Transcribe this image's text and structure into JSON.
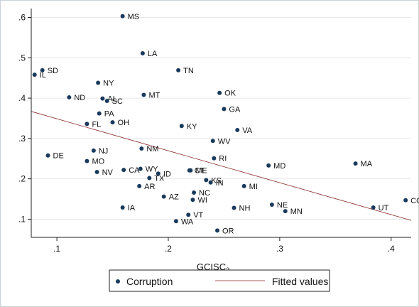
{
  "chart_data": {
    "type": "scatter",
    "xlabel": "GCISC",
    "xlabel_sub": "2",
    "xlim": [
      0.077,
      0.418
    ],
    "ylim": [
      0.055,
      0.622
    ],
    "xticks": [
      0.1,
      0.2,
      0.3,
      0.4
    ],
    "xtick_labels": [
      ".1",
      ".2",
      ".3",
      ".4"
    ],
    "yticks": [
      0.1,
      0.2,
      0.3,
      0.4,
      0.5,
      0.6
    ],
    "ytick_labels": [
      ".1",
      ".2",
      ".3",
      ".4",
      ".5",
      ".6"
    ],
    "grid": "horizontal",
    "legend_position": "bottom",
    "series": [
      {
        "name": "Corruption",
        "kind": "points",
        "color": "#1a3a5c",
        "points": [
          {
            "x": 0.159,
            "y": 0.603,
            "label": "MS"
          },
          {
            "x": 0.177,
            "y": 0.511,
            "label": "LA"
          },
          {
            "x": 0.087,
            "y": 0.469,
            "label": "SD"
          },
          {
            "x": 0.209,
            "y": 0.469,
            "label": "TN"
          },
          {
            "x": 0.08,
            "y": 0.458,
            "label": "IL"
          },
          {
            "x": 0.137,
            "y": 0.438,
            "label": "NY"
          },
          {
            "x": 0.246,
            "y": 0.413,
            "label": "OK"
          },
          {
            "x": 0.178,
            "y": 0.408,
            "label": "MT"
          },
          {
            "x": 0.111,
            "y": 0.402,
            "label": "ND"
          },
          {
            "x": 0.141,
            "y": 0.399,
            "label": "AL"
          },
          {
            "x": 0.145,
            "y": 0.393,
            "label": "SC"
          },
          {
            "x": 0.25,
            "y": 0.373,
            "label": "GA"
          },
          {
            "x": 0.138,
            "y": 0.362,
            "label": "PA"
          },
          {
            "x": 0.15,
            "y": 0.34,
            "label": "OH"
          },
          {
            "x": 0.127,
            "y": 0.336,
            "label": "FL"
          },
          {
            "x": 0.212,
            "y": 0.331,
            "label": "KY"
          },
          {
            "x": 0.262,
            "y": 0.321,
            "label": "VA"
          },
          {
            "x": 0.24,
            "y": 0.294,
            "label": "WV"
          },
          {
            "x": 0.176,
            "y": 0.275,
            "label": "NM"
          },
          {
            "x": 0.133,
            "y": 0.27,
            "label": "NJ"
          },
          {
            "x": 0.092,
            "y": 0.258,
            "label": "DE"
          },
          {
            "x": 0.241,
            "y": 0.251,
            "label": "RI"
          },
          {
            "x": 0.127,
            "y": 0.244,
            "label": "MO"
          },
          {
            "x": 0.368,
            "y": 0.238,
            "label": "MA"
          },
          {
            "x": 0.29,
            "y": 0.233,
            "label": "MD"
          },
          {
            "x": 0.175,
            "y": 0.225,
            "label": "WY"
          },
          {
            "x": 0.16,
            "y": 0.222,
            "label": "CA"
          },
          {
            "x": 0.219,
            "y": 0.221,
            "label": "CT"
          },
          {
            "x": 0.22,
            "y": 0.221,
            "label": "ME"
          },
          {
            "x": 0.136,
            "y": 0.217,
            "label": "NV"
          },
          {
            "x": 0.191,
            "y": 0.213,
            "label": "ID"
          },
          {
            "x": 0.183,
            "y": 0.202,
            "label": "TX"
          },
          {
            "x": 0.234,
            "y": 0.197,
            "label": "KS"
          },
          {
            "x": 0.238,
            "y": 0.191,
            "label": "IN"
          },
          {
            "x": 0.174,
            "y": 0.182,
            "label": "AR"
          },
          {
            "x": 0.268,
            "y": 0.182,
            "label": "MI"
          },
          {
            "x": 0.223,
            "y": 0.166,
            "label": "NC"
          },
          {
            "x": 0.196,
            "y": 0.156,
            "label": "AZ"
          },
          {
            "x": 0.222,
            "y": 0.148,
            "label": "WI"
          },
          {
            "x": 0.413,
            "y": 0.147,
            "label": "CO"
          },
          {
            "x": 0.293,
            "y": 0.136,
            "label": "NE"
          },
          {
            "x": 0.159,
            "y": 0.129,
            "label": "IA"
          },
          {
            "x": 0.259,
            "y": 0.128,
            "label": "NH"
          },
          {
            "x": 0.384,
            "y": 0.129,
            "label": "UT"
          },
          {
            "x": 0.305,
            "y": 0.12,
            "label": "MN"
          },
          {
            "x": 0.218,
            "y": 0.111,
            "label": "VT"
          },
          {
            "x": 0.207,
            "y": 0.095,
            "label": "WA"
          },
          {
            "x": 0.244,
            "y": 0.072,
            "label": "OR"
          }
        ]
      },
      {
        "name": "Fitted values",
        "kind": "line",
        "color": "#8b2a2a",
        "x": [
          0.077,
          0.418
        ],
        "y": [
          0.367,
          0.097
        ]
      }
    ]
  }
}
